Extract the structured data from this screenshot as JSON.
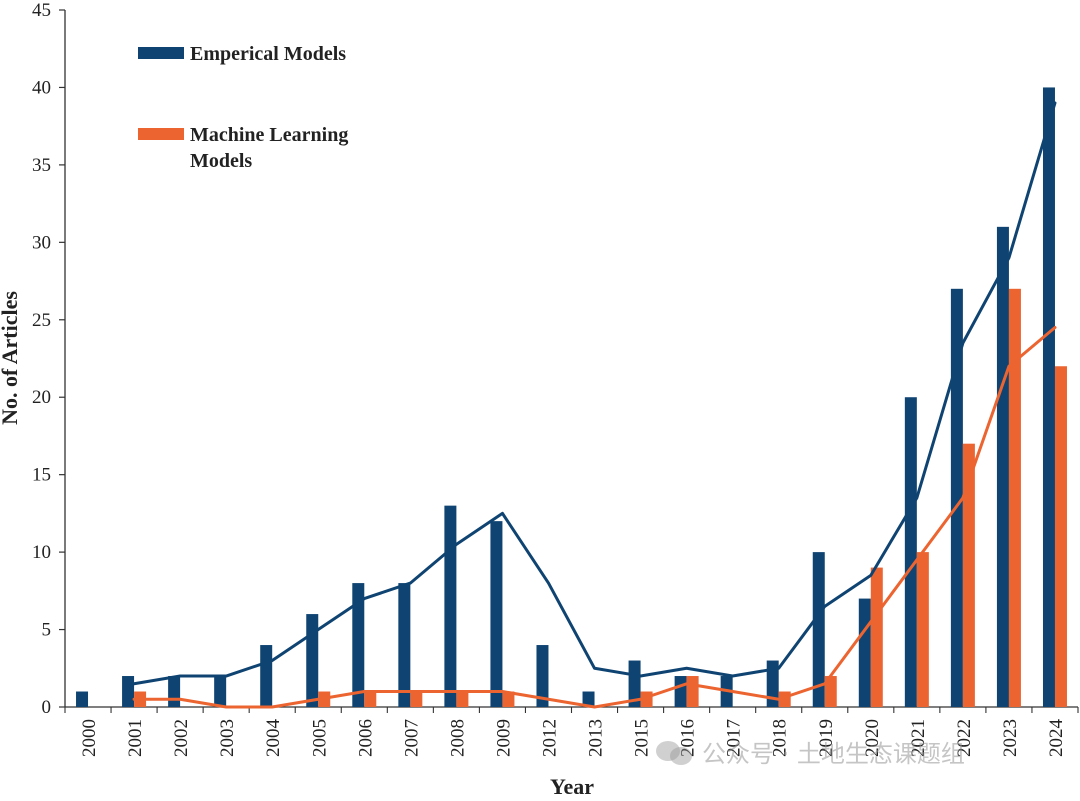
{
  "chart_data": {
    "type": "bar",
    "categories": [
      "2000",
      "2001",
      "2002",
      "2003",
      "2004",
      "2005",
      "2006",
      "2007",
      "2008",
      "2009",
      "2012",
      "2013",
      "2015",
      "2016",
      "2017",
      "2018",
      "2019",
      "2020",
      "2021",
      "2022",
      "2023",
      "2024"
    ],
    "series": [
      {
        "name": "Emperical Models",
        "name_lines": [
          "Emperical Models"
        ],
        "color": "#0f4472",
        "values": [
          1,
          2,
          2,
          2,
          4,
          6,
          8,
          8,
          13,
          12,
          4,
          1,
          3,
          2,
          2,
          3,
          10,
          7,
          20,
          27,
          31,
          40
        ],
        "trend": [
          null,
          1.5,
          2,
          2,
          3,
          5,
          7,
          8,
          10.5,
          12.5,
          8,
          2.5,
          2,
          2.5,
          2,
          2.5,
          6.5,
          8.5,
          13.5,
          23.5,
          29,
          39
        ]
      },
      {
        "name": "Machine Learning Models",
        "name_lines": [
          "Machine Learning",
          "Models"
        ],
        "color": "#ec6430",
        "values": [
          0,
          1,
          0,
          0,
          0,
          1,
          1,
          1,
          1,
          1,
          0,
          0,
          1,
          2,
          0,
          1,
          2,
          9,
          10,
          17,
          27,
          22
        ],
        "trend": [
          null,
          0.5,
          0.5,
          0,
          0,
          0.5,
          1,
          1,
          1,
          1,
          0.5,
          0,
          0.5,
          1.5,
          1,
          0.5,
          1.5,
          5.5,
          9.5,
          13.5,
          22,
          24.5
        ]
      }
    ],
    "title": "",
    "xlabel": "Year",
    "ylabel": "No. of Articles",
    "ylim": [
      0,
      45
    ],
    "yticks": [
      0,
      5,
      10,
      15,
      20,
      25,
      30,
      35,
      40,
      45
    ],
    "legend_position": "top-left",
    "grid": false,
    "watermark": "公众号 · 土地生态课题组"
  }
}
